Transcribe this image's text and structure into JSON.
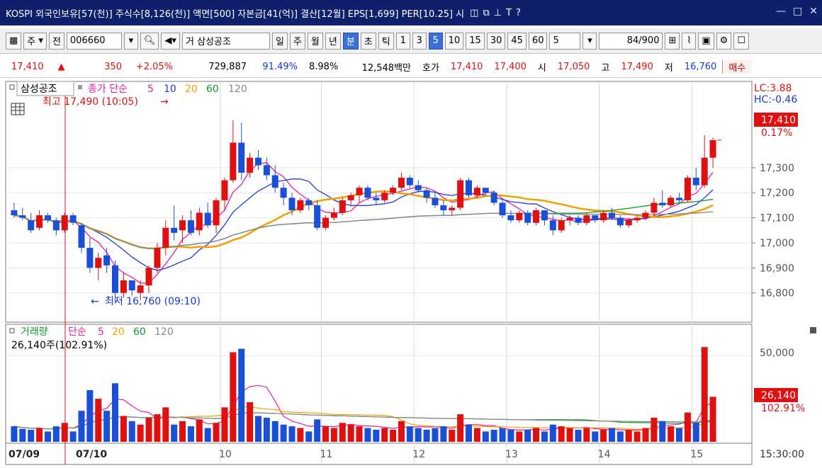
{
  "titlebar": {
    "text": "KOSPI 외국인보유[57(천)] 주식수[8,126(천)] 액면[500] 자본금[41(억)] 결산[12월] EPS[1,699] PER[10.25] 시",
    "icons": [
      "restore-icon",
      "popout-icon",
      "pin-icon",
      "font-icon",
      "help-icon",
      "minimize-icon",
      "maximize-icon",
      "close-icon"
    ]
  },
  "toolbar": {
    "market_type": "주",
    "prev_label": "전",
    "code": "006660",
    "name_prefix": "거",
    "stock_name": "삼성공조",
    "periods": [
      "일",
      "주",
      "월",
      "년",
      "분",
      "초",
      "틱"
    ],
    "selected_period": "분",
    "intervals": [
      "1",
      "3",
      "5",
      "10",
      "15",
      "30",
      "45",
      "60"
    ],
    "selected_interval": "5",
    "interval_value": "5",
    "count_value": "84",
    "count_total": "/900"
  },
  "quote": {
    "price": "17,410",
    "arrow": "▲",
    "change": "350",
    "change_pct": "+2.05%",
    "volume": "729,887",
    "pct1": "91.49%",
    "pct2": "8.98%",
    "amount": "12,548백만",
    "ask_label": "호가",
    "ask1": "17,410",
    "ask2": "17,400",
    "open_label": "시",
    "open": "17,050",
    "high_label": "고",
    "high": "17,490",
    "low_label": "저",
    "low": "16,760",
    "buy_label": "매수"
  },
  "price_panel": {
    "legend_name": "삼성공조",
    "legend_series": "종가 단순",
    "ma_labels": [
      "5",
      "10",
      "20",
      "60",
      "120"
    ],
    "ma_colors": [
      "#e61ea0",
      "#1f3ad6",
      "#f0a000",
      "#109a30",
      "#888888"
    ],
    "high_note": "최고 17,490 (10:05)",
    "low_note": "최저 16,760 (09:10)",
    "lc": "LC:3.88",
    "hc": "HC:-0.46",
    "last_price": "17,410",
    "last_pct": "0.17%",
    "y_ticks": [
      "17,300",
      "17,200",
      "17,100",
      "17,000",
      "16,900",
      "16,800"
    ]
  },
  "volume_panel": {
    "legend_name": "거래량",
    "legend_series": "단순",
    "ma_labels": [
      "5",
      "20",
      "60",
      "120"
    ],
    "current": "26,140주(102.91%)",
    "last_value": "26,140",
    "last_pct": "102.91%",
    "y_ticks": [
      "50,000"
    ]
  },
  "x_axis": {
    "labels": [
      "07/09",
      "07/10",
      "10",
      "11",
      "12",
      "13",
      "14",
      "15"
    ],
    "time": "15:30:00"
  },
  "chart_data": {
    "type": "candlestick",
    "y_range": [
      16720,
      17540
    ],
    "volume_range": [
      0,
      60000
    ],
    "candles": [
      [
        17130,
        17160,
        17100,
        17110,
        9000
      ],
      [
        17110,
        17140,
        17090,
        17100,
        7500
      ],
      [
        17090,
        17120,
        17040,
        17050,
        7000
      ],
      [
        17060,
        17130,
        17050,
        17110,
        8000
      ],
      [
        17110,
        17120,
        17080,
        17090,
        6000
      ],
      [
        17090,
        17100,
        17030,
        17050,
        9000
      ],
      [
        17050,
        17120,
        17040,
        17110,
        11000
      ],
      [
        17110,
        17120,
        17070,
        17080,
        6000
      ],
      [
        17070,
        17080,
        16960,
        16980,
        18000
      ],
      [
        16980,
        17020,
        16880,
        16900,
        30000
      ],
      [
        16900,
        16960,
        16850,
        16940,
        25000
      ],
      [
        16950,
        16980,
        16880,
        16910,
        18000
      ],
      [
        16910,
        16930,
        16760,
        16800,
        34000
      ],
      [
        16800,
        16880,
        16780,
        16850,
        15000
      ],
      [
        16850,
        16850,
        16790,
        16810,
        12000
      ],
      [
        16800,
        16850,
        16770,
        16830,
        10000
      ],
      [
        16830,
        16910,
        16800,
        16900,
        14000
      ],
      [
        16900,
        17000,
        16880,
        16980,
        16000
      ],
      [
        16980,
        17090,
        16950,
        17060,
        20000
      ],
      [
        17060,
        17150,
        17010,
        17040,
        10000
      ],
      [
        17050,
        17110,
        17000,
        17090,
        12000
      ],
      [
        17090,
        17130,
        17030,
        17040,
        9000
      ],
      [
        17050,
        17140,
        17030,
        17120,
        13000
      ],
      [
        17120,
        17160,
        17060,
        17070,
        8000
      ],
      [
        17070,
        17180,
        17040,
        17170,
        11000
      ],
      [
        17170,
        17260,
        17130,
        17250,
        20000
      ],
      [
        17250,
        17490,
        17240,
        17400,
        52000
      ],
      [
        17400,
        17480,
        17250,
        17280,
        54000
      ],
      [
        17280,
        17360,
        17260,
        17340,
        23000
      ],
      [
        17340,
        17370,
        17290,
        17310,
        15000
      ],
      [
        17310,
        17340,
        17250,
        17270,
        14000
      ],
      [
        17270,
        17310,
        17200,
        17220,
        12000
      ],
      [
        17220,
        17240,
        17150,
        17180,
        10000
      ],
      [
        17180,
        17200,
        17110,
        17130,
        9000
      ],
      [
        17130,
        17180,
        17120,
        17170,
        8000
      ],
      [
        17170,
        17180,
        17130,
        17150,
        6000
      ],
      [
        17150,
        17170,
        17050,
        17060,
        13000
      ],
      [
        17060,
        17110,
        17050,
        17100,
        9000
      ],
      [
        17100,
        17140,
        17090,
        17120,
        8000
      ],
      [
        17120,
        17180,
        17110,
        17170,
        11000
      ],
      [
        17170,
        17200,
        17150,
        17190,
        10000
      ],
      [
        17190,
        17230,
        17160,
        17220,
        9000
      ],
      [
        17220,
        17230,
        17170,
        17180,
        8000
      ],
      [
        17180,
        17200,
        17150,
        17170,
        7000
      ],
      [
        17170,
        17210,
        17160,
        17200,
        8000
      ],
      [
        17200,
        17230,
        17190,
        17220,
        7000
      ],
      [
        17220,
        17280,
        17210,
        17260,
        12000
      ],
      [
        17260,
        17270,
        17220,
        17230,
        9000
      ],
      [
        17230,
        17250,
        17200,
        17210,
        8000
      ],
      [
        17210,
        17220,
        17160,
        17180,
        7000
      ],
      [
        17180,
        17200,
        17140,
        17150,
        8000
      ],
      [
        17150,
        17170,
        17110,
        17130,
        9000
      ],
      [
        17130,
        17150,
        17110,
        17140,
        7000
      ],
      [
        17140,
        17260,
        17130,
        17250,
        16000
      ],
      [
        17250,
        17260,
        17180,
        17190,
        10000
      ],
      [
        17190,
        17230,
        17180,
        17220,
        8000
      ],
      [
        17220,
        17220,
        17190,
        17200,
        6000
      ],
      [
        17200,
        17210,
        17150,
        17160,
        7000
      ],
      [
        17160,
        17170,
        17100,
        17110,
        8000
      ],
      [
        17110,
        17130,
        17080,
        17090,
        7000
      ],
      [
        17090,
        17130,
        17080,
        17120,
        6000
      ],
      [
        17120,
        17130,
        17070,
        17080,
        7000
      ],
      [
        17080,
        17140,
        17070,
        17130,
        8000
      ],
      [
        17130,
        17130,
        17070,
        17090,
        6000
      ],
      [
        17090,
        17110,
        17030,
        17050,
        10000
      ],
      [
        17050,
        17100,
        17040,
        17090,
        9000
      ],
      [
        17090,
        17110,
        17070,
        17100,
        8000
      ],
      [
        17100,
        17110,
        17070,
        17080,
        7000
      ],
      [
        17080,
        17120,
        17070,
        17110,
        8000
      ],
      [
        17110,
        17110,
        17080,
        17090,
        6000
      ],
      [
        17090,
        17130,
        17080,
        17120,
        7000
      ],
      [
        17120,
        17140,
        17090,
        17100,
        8000
      ],
      [
        17100,
        17110,
        17060,
        17070,
        6000
      ],
      [
        17070,
        17100,
        17060,
        17090,
        7000
      ],
      [
        17090,
        17110,
        17080,
        17100,
        6000
      ],
      [
        17100,
        17130,
        17090,
        17120,
        8000
      ],
      [
        17120,
        17180,
        17110,
        17160,
        14000
      ],
      [
        17160,
        17210,
        17140,
        17150,
        12000
      ],
      [
        17150,
        17190,
        17140,
        17180,
        9000
      ],
      [
        17180,
        17200,
        17160,
        17170,
        8000
      ],
      [
        17170,
        17270,
        17160,
        17260,
        17000
      ],
      [
        17260,
        17300,
        17210,
        17230,
        11000
      ],
      [
        17230,
        17430,
        17220,
        17340,
        55000
      ],
      [
        17340,
        17420,
        17300,
        17410,
        26140
      ]
    ]
  }
}
